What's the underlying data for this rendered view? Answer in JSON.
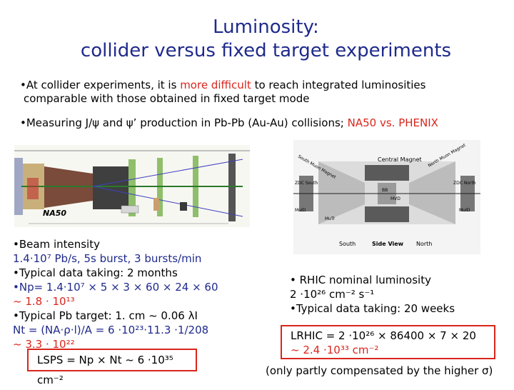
{
  "title_line1": "Luminosity:",
  "title_line2": "collider versus fixed target experiments",
  "bullets": {
    "b1_pre": "•At collider experiments, it is ",
    "b1_red": "more difficult",
    "b1_post": " to reach integrated luminosities",
    "b1_line2": "comparable with those obtained in fixed target mode",
    "b2_pre": "•Measuring J/ψ and ψ’ production in Pb-Pb (Au-Au) collisions; ",
    "b2_red": "NA50 vs. PHENIX"
  },
  "na50": {
    "label": "NA50",
    "lines": [
      "•Beam intensity",
      "1.4·10⁷ Pb/s, 5s burst, 3 bursts/min",
      "•Typical data taking: 2 months",
      "•Np= 1.4·10⁷ × 5 × 3 × 60 × 24 × 60",
      "~ 1.8 · 10¹³",
      "•Typical Pb target:  1. cm ~ 0.06 λI",
      "Nt = (NA·ρ·l)/A = 6 ·10²³·11.3 ·1/208",
      "~ 3.3 · 10²²"
    ],
    "box": "LSPS = Np × Nt ~ 6 ·10³⁵ cm⁻²"
  },
  "phenix": {
    "labels": {
      "top": "Central Magnet",
      "side": "Side View",
      "south": "South",
      "north": "North",
      "zdc_s": "ZDC South",
      "zdc_n": "ZDC North",
      "muid": "MuID",
      "mutr": "MuTr",
      "bb": "BB",
      "mvd": "MVD",
      "sml": "South Muon Magnet",
      "nml": "North Muon Magnet"
    },
    "lines": [
      "• RHIC nominal luminosity",
      "2 ·10²⁶ cm⁻² s⁻¹",
      "•Typical data taking: 20 weeks"
    ],
    "box_line1": "LRHIC = 2 ·10²⁶ × 86400 × 7 × 20",
    "box_line2": "~ 2.4 ·10³³ cm⁻²",
    "footer": "(only partly compensated by the higher σ)"
  }
}
